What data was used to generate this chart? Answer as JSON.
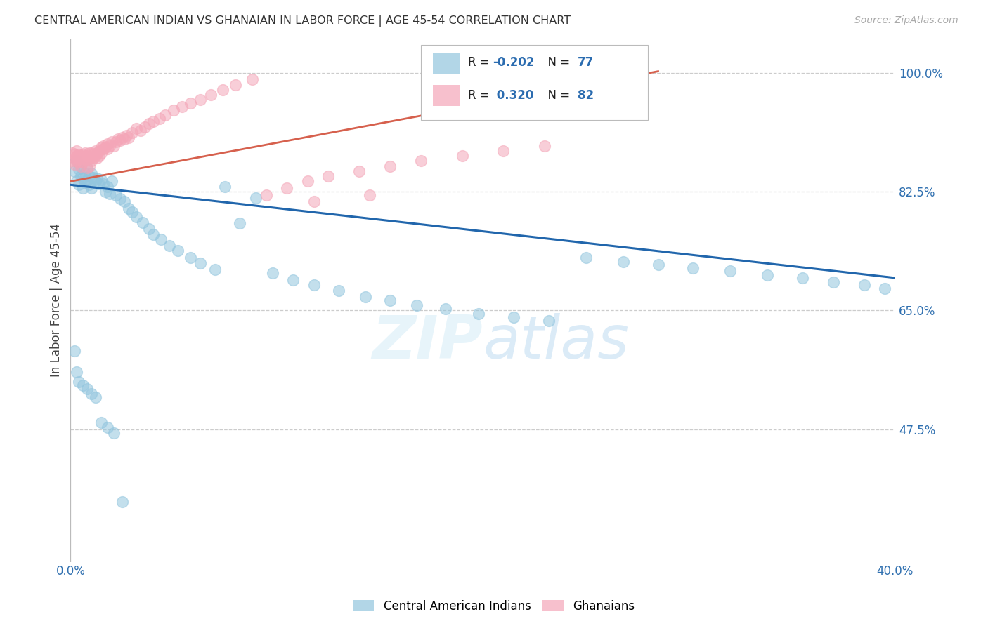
{
  "title": "CENTRAL AMERICAN INDIAN VS GHANAIAN IN LABOR FORCE | AGE 45-54 CORRELATION CHART",
  "source": "Source: ZipAtlas.com",
  "ylabel": "In Labor Force | Age 45-54",
  "xlim": [
    0.0,
    0.4
  ],
  "ylim": [
    0.28,
    1.05
  ],
  "R_blue": -0.202,
  "N_blue": 77,
  "R_pink": 0.32,
  "N_pink": 82,
  "legend_labels": [
    "Central American Indians",
    "Ghanaians"
  ],
  "blue_color": "#92c5de",
  "pink_color": "#f4a6b8",
  "blue_line_color": "#2166ac",
  "pink_line_color": "#d6604d",
  "watermark_zip": "ZIP",
  "watermark_atlas": "atlas",
  "blue_scatter_x": [
    0.002,
    0.003,
    0.003,
    0.004,
    0.004,
    0.005,
    0.005,
    0.006,
    0.006,
    0.007,
    0.007,
    0.008,
    0.008,
    0.009,
    0.009,
    0.01,
    0.01,
    0.011,
    0.012,
    0.013,
    0.014,
    0.015,
    0.016,
    0.017,
    0.018,
    0.019,
    0.02,
    0.022,
    0.024,
    0.026,
    0.028,
    0.03,
    0.032,
    0.035,
    0.038,
    0.04,
    0.044,
    0.048,
    0.052,
    0.058,
    0.063,
    0.07,
    0.075,
    0.082,
    0.09,
    0.098,
    0.108,
    0.118,
    0.13,
    0.143,
    0.155,
    0.168,
    0.182,
    0.198,
    0.215,
    0.232,
    0.25,
    0.268,
    0.285,
    0.302,
    0.32,
    0.338,
    0.355,
    0.37,
    0.385,
    0.395,
    0.002,
    0.003,
    0.004,
    0.006,
    0.008,
    0.01,
    0.012,
    0.015,
    0.018,
    0.021,
    0.025
  ],
  "blue_scatter_y": [
    0.855,
    0.84,
    0.87,
    0.835,
    0.858,
    0.848,
    0.862,
    0.845,
    0.83,
    0.852,
    0.838,
    0.842,
    0.86,
    0.835,
    0.848,
    0.852,
    0.83,
    0.846,
    0.84,
    0.845,
    0.836,
    0.843,
    0.836,
    0.825,
    0.832,
    0.822,
    0.84,
    0.82,
    0.815,
    0.81,
    0.8,
    0.795,
    0.788,
    0.78,
    0.77,
    0.762,
    0.755,
    0.745,
    0.738,
    0.728,
    0.72,
    0.71,
    0.832,
    0.778,
    0.816,
    0.705,
    0.695,
    0.688,
    0.679,
    0.67,
    0.665,
    0.658,
    0.652,
    0.645,
    0.64,
    0.635,
    0.728,
    0.722,
    0.718,
    0.712,
    0.708,
    0.702,
    0.698,
    0.692,
    0.688,
    0.682,
    0.59,
    0.56,
    0.545,
    0.54,
    0.535,
    0.528,
    0.522,
    0.485,
    0.478,
    0.47,
    0.368
  ],
  "pink_scatter_x": [
    0.001,
    0.001,
    0.002,
    0.002,
    0.002,
    0.003,
    0.003,
    0.003,
    0.004,
    0.004,
    0.004,
    0.005,
    0.005,
    0.005,
    0.006,
    0.006,
    0.006,
    0.007,
    0.007,
    0.007,
    0.008,
    0.008,
    0.008,
    0.009,
    0.009,
    0.009,
    0.01,
    0.01,
    0.01,
    0.011,
    0.011,
    0.012,
    0.012,
    0.013,
    0.013,
    0.014,
    0.014,
    0.015,
    0.015,
    0.016,
    0.016,
    0.017,
    0.018,
    0.018,
    0.019,
    0.02,
    0.021,
    0.022,
    0.023,
    0.024,
    0.025,
    0.026,
    0.027,
    0.028,
    0.03,
    0.032,
    0.034,
    0.036,
    0.038,
    0.04,
    0.043,
    0.046,
    0.05,
    0.054,
    0.058,
    0.063,
    0.068,
    0.074,
    0.08,
    0.088,
    0.095,
    0.105,
    0.115,
    0.125,
    0.14,
    0.155,
    0.17,
    0.19,
    0.21,
    0.23,
    0.118,
    0.145
  ],
  "pink_scatter_y": [
    0.87,
    0.882,
    0.865,
    0.875,
    0.88,
    0.87,
    0.878,
    0.885,
    0.872,
    0.868,
    0.88,
    0.875,
    0.862,
    0.878,
    0.868,
    0.875,
    0.88,
    0.872,
    0.878,
    0.882,
    0.86,
    0.872,
    0.878,
    0.862,
    0.875,
    0.882,
    0.87,
    0.876,
    0.882,
    0.875,
    0.88,
    0.878,
    0.885,
    0.875,
    0.882,
    0.878,
    0.885,
    0.882,
    0.89,
    0.888,
    0.892,
    0.89,
    0.895,
    0.888,
    0.892,
    0.898,
    0.892,
    0.898,
    0.902,
    0.9,
    0.905,
    0.902,
    0.908,
    0.905,
    0.912,
    0.918,
    0.915,
    0.92,
    0.925,
    0.928,
    0.932,
    0.938,
    0.945,
    0.95,
    0.955,
    0.96,
    0.968,
    0.975,
    0.982,
    0.99,
    0.82,
    0.83,
    0.84,
    0.848,
    0.855,
    0.862,
    0.87,
    0.878,
    0.885,
    0.892,
    0.81,
    0.82
  ],
  "ytick_positions": [
    0.475,
    0.65,
    0.825,
    1.0
  ],
  "ytick_labels": [
    "47.5%",
    "65.0%",
    "82.5%",
    "100.0%"
  ],
  "xtick_positions": [
    0.0,
    0.08,
    0.16,
    0.24,
    0.32,
    0.4
  ],
  "xtick_labels": [
    "0.0%",
    "",
    "",
    "",
    "",
    "40.0%"
  ]
}
